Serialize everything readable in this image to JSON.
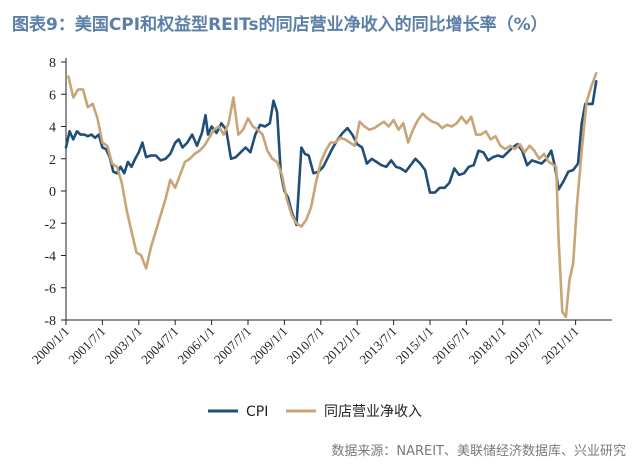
{
  "chart_data": {
    "type": "line",
    "title": "图表9：美国CPI和权益型REITs的同店营业净收入的同比增长率（%）",
    "source": "数据来源：NAREIT、美联储经济数据库、兴业研究",
    "xlabel": "",
    "ylabel": "",
    "ylim": [
      -8,
      8
    ],
    "yticks": [
      -8,
      -6,
      -4,
      -2,
      0,
      2,
      4,
      6,
      8
    ],
    "xlim": [
      2000.0,
      2022.5
    ],
    "xtick_labels": [
      "2000/1/1",
      "2001/7/1",
      "2003/1/1",
      "2004/7/1",
      "2006/1/1",
      "2007/7/1",
      "2009/1/1",
      "2010/7/1",
      "2012/1/1",
      "2013/7/1",
      "2015/1/1",
      "2016/7/1",
      "2018/1/1",
      "2019/7/1",
      "2021/1/1"
    ],
    "xtick_values": [
      2000.0,
      2001.5,
      2003.0,
      2004.5,
      2006.0,
      2007.5,
      2009.0,
      2010.5,
      2012.0,
      2013.5,
      2015.0,
      2016.5,
      2018.0,
      2019.5,
      2021.0
    ],
    "grid": false,
    "legend_position": "bottom",
    "series": [
      {
        "name": "CPI",
        "color": "#1f4e79",
        "x": [
          2000.0,
          2000.15,
          2000.3,
          2000.45,
          2000.6,
          2000.75,
          2000.9,
          2001.05,
          2001.2,
          2001.35,
          2001.5,
          2001.65,
          2001.8,
          2001.95,
          2002.1,
          2002.25,
          2002.4,
          2002.55,
          2002.7,
          2002.85,
          2003.0,
          2003.15,
          2003.3,
          2003.5,
          2003.7,
          2003.9,
          2004.1,
          2004.3,
          2004.5,
          2004.65,
          2004.8,
          2005.0,
          2005.2,
          2005.4,
          2005.6,
          2005.75,
          2005.85,
          2006.0,
          2006.2,
          2006.4,
          2006.6,
          2006.8,
          2007.0,
          2007.2,
          2007.4,
          2007.6,
          2007.8,
          2008.0,
          2008.2,
          2008.4,
          2008.55,
          2008.7,
          2008.85,
          2009.0,
          2009.15,
          2009.3,
          2009.5,
          2009.7,
          2009.85,
          2010.0,
          2010.2,
          2010.4,
          2010.6,
          2010.8,
          2011.0,
          2011.2,
          2011.4,
          2011.6,
          2011.8,
          2012.0,
          2012.2,
          2012.4,
          2012.6,
          2012.8,
          2013.0,
          2013.2,
          2013.4,
          2013.6,
          2013.8,
          2014.0,
          2014.2,
          2014.4,
          2014.6,
          2014.8,
          2015.0,
          2015.2,
          2015.4,
          2015.6,
          2015.8,
          2016.0,
          2016.2,
          2016.4,
          2016.6,
          2016.8,
          2017.0,
          2017.2,
          2017.4,
          2017.6,
          2017.8,
          2018.0,
          2018.2,
          2018.4,
          2018.6,
          2018.8,
          2019.0,
          2019.2,
          2019.4,
          2019.6,
          2019.8,
          2020.0,
          2020.15,
          2020.3,
          2020.5,
          2020.7,
          2020.9,
          2021.1,
          2021.25,
          2021.4,
          2021.55,
          2021.7,
          2021.85
        ],
        "values": [
          2.7,
          3.7,
          3.2,
          3.7,
          3.5,
          3.5,
          3.4,
          3.5,
          3.3,
          3.5,
          2.7,
          2.6,
          2.1,
          1.2,
          1.1,
          1.5,
          1.1,
          1.8,
          1.5,
          2.0,
          2.4,
          3.0,
          2.1,
          2.2,
          2.2,
          1.9,
          2.0,
          2.3,
          3.0,
          3.2,
          2.7,
          3.0,
          3.5,
          2.8,
          3.6,
          4.7,
          3.5,
          4.0,
          3.6,
          4.2,
          3.8,
          2.0,
          2.1,
          2.4,
          2.7,
          2.4,
          3.5,
          4.1,
          4.0,
          4.2,
          5.6,
          4.9,
          1.1,
          0.0,
          -0.4,
          -1.3,
          -2.1,
          2.7,
          2.3,
          2.2,
          1.1,
          1.2,
          1.5,
          2.1,
          2.7,
          3.2,
          3.6,
          3.9,
          3.5,
          2.9,
          2.7,
          1.7,
          2.0,
          1.8,
          1.6,
          1.5,
          1.9,
          1.5,
          1.4,
          1.2,
          1.6,
          2.0,
          1.7,
          1.3,
          -0.1,
          -0.1,
          0.2,
          0.2,
          0.5,
          1.4,
          1.0,
          1.1,
          1.5,
          1.6,
          2.5,
          2.4,
          1.9,
          2.1,
          2.2,
          2.1,
          2.4,
          2.7,
          2.9,
          2.5,
          1.6,
          1.9,
          1.8,
          1.7,
          2.0,
          2.5,
          1.5,
          0.1,
          0.6,
          1.2,
          1.3,
          1.7,
          4.2,
          5.4,
          5.4,
          5.4,
          6.8
        ]
      },
      {
        "name": "同店营业净收入",
        "color": "#c8a576",
        "x": [
          2000.1,
          2000.3,
          2000.5,
          2000.7,
          2000.9,
          2001.1,
          2001.3,
          2001.5,
          2001.7,
          2001.9,
          2002.1,
          2002.3,
          2002.5,
          2002.7,
          2002.9,
          2003.1,
          2003.3,
          2003.5,
          2003.7,
          2003.9,
          2004.1,
          2004.3,
          2004.5,
          2004.7,
          2004.9,
          2005.1,
          2005.3,
          2005.5,
          2005.7,
          2005.9,
          2006.1,
          2006.3,
          2006.5,
          2006.7,
          2006.9,
          2007.1,
          2007.3,
          2007.5,
          2007.7,
          2007.9,
          2008.1,
          2008.3,
          2008.5,
          2008.7,
          2008.9,
          2009.1,
          2009.3,
          2009.5,
          2009.7,
          2009.9,
          2010.1,
          2010.3,
          2010.5,
          2010.7,
          2010.9,
          2011.1,
          2011.3,
          2011.5,
          2011.7,
          2011.9,
          2012.1,
          2012.3,
          2012.5,
          2012.7,
          2012.9,
          2013.1,
          2013.3,
          2013.5,
          2013.7,
          2013.9,
          2014.1,
          2014.3,
          2014.5,
          2014.7,
          2014.9,
          2015.1,
          2015.3,
          2015.5,
          2015.7,
          2015.9,
          2016.1,
          2016.3,
          2016.5,
          2016.7,
          2016.9,
          2017.1,
          2017.3,
          2017.5,
          2017.7,
          2017.9,
          2018.1,
          2018.3,
          2018.5,
          2018.7,
          2018.9,
          2019.1,
          2019.3,
          2019.5,
          2019.7,
          2019.9,
          2020.1,
          2020.2,
          2020.3,
          2020.45,
          2020.6,
          2020.75,
          2020.9,
          2021.05,
          2021.25,
          2021.45,
          2021.65,
          2021.85
        ],
        "values": [
          7.1,
          5.8,
          6.3,
          6.3,
          5.2,
          5.4,
          4.5,
          3.0,
          2.8,
          1.7,
          1.5,
          0.5,
          -1.2,
          -2.5,
          -3.8,
          -4.0,
          -4.8,
          -3.5,
          -2.5,
          -1.5,
          -0.5,
          0.7,
          0.2,
          1.0,
          1.8,
          2.0,
          2.3,
          2.5,
          2.8,
          3.3,
          3.8,
          4.0,
          3.5,
          4.2,
          5.8,
          3.5,
          3.8,
          4.5,
          4.0,
          3.8,
          3.5,
          2.5,
          2.0,
          1.8,
          1.0,
          -0.5,
          -1.5,
          -2.0,
          -2.2,
          -1.8,
          -1.0,
          0.5,
          1.8,
          2.5,
          3.0,
          3.0,
          3.3,
          3.2,
          3.0,
          2.8,
          4.3,
          4.0,
          3.8,
          3.9,
          4.1,
          4.3,
          4.0,
          4.4,
          3.8,
          4.2,
          3.0,
          3.8,
          4.4,
          4.8,
          4.5,
          4.3,
          4.2,
          3.9,
          4.1,
          4.0,
          4.2,
          4.6,
          4.2,
          4.6,
          3.5,
          3.5,
          3.7,
          3.2,
          3.4,
          2.8,
          2.6,
          2.8,
          2.6,
          2.9,
          2.4,
          2.8,
          2.5,
          2.0,
          2.3,
          1.8,
          1.6,
          1.5,
          -3.0,
          -7.5,
          -7.8,
          -5.5,
          -4.5,
          -1.0,
          2.5,
          5.5,
          6.5,
          7.3
        ]
      }
    ]
  }
}
